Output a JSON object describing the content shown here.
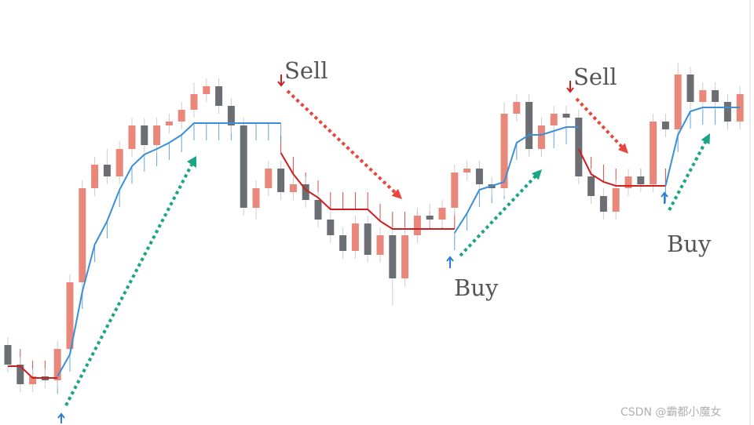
{
  "chart_data": {
    "type": "candlestick",
    "ylim": [
      0,
      542
    ],
    "open": [
      102,
      77,
      52,
      62,
      57,
      97,
      182,
      302,
      332,
      317,
      352,
      382,
      357,
      382,
      387,
      402,
      422,
      432,
      407,
      382,
      277,
      302,
      327,
      297,
      307,
      287,
      262,
      242,
      222,
      257,
      217,
      242,
      187,
      242,
      267,
      262,
      277,
      322,
      327,
      307,
      302,
      397,
      412,
      352,
      382,
      397,
      392,
      317,
      292,
      272,
      302,
      317,
      307,
      387,
      377,
      447,
      412,
      427,
      412,
      387
    ],
    "high": [
      112,
      87,
      72,
      72,
      107,
      192,
      312,
      342,
      352,
      362,
      392,
      392,
      392,
      397,
      412,
      437,
      442,
      442,
      417,
      392,
      312,
      337,
      337,
      317,
      317,
      297,
      272,
      252,
      267,
      267,
      252,
      252,
      252,
      277,
      282,
      287,
      332,
      337,
      337,
      317,
      412,
      422,
      422,
      392,
      407,
      407,
      402,
      327,
      302,
      312,
      327,
      327,
      397,
      397,
      462,
      457,
      437,
      437,
      422,
      432
    ],
    "low": [
      67,
      42,
      42,
      47,
      47,
      87,
      172,
      292,
      307,
      307,
      342,
      347,
      347,
      372,
      377,
      392,
      412,
      397,
      372,
      267,
      262,
      292,
      287,
      287,
      277,
      252,
      232,
      212,
      212,
      207,
      207,
      152,
      177,
      232,
      252,
      252,
      267,
      312,
      297,
      292,
      292,
      387,
      342,
      342,
      372,
      382,
      307,
      282,
      262,
      262,
      292,
      297,
      297,
      367,
      367,
      402,
      402,
      402,
      377,
      377
    ],
    "close": [
      77,
      52,
      62,
      57,
      97,
      182,
      302,
      332,
      317,
      352,
      382,
      357,
      382,
      387,
      402,
      422,
      432,
      407,
      382,
      277,
      302,
      327,
      297,
      307,
      287,
      262,
      242,
      222,
      257,
      217,
      242,
      187,
      242,
      267,
      262,
      277,
      322,
      327,
      307,
      302,
      397,
      412,
      352,
      382,
      397,
      392,
      317,
      292,
      272,
      302,
      317,
      307,
      387,
      377,
      447,
      412,
      427,
      412,
      387,
      422
    ],
    "up_color": "#e8877a",
    "down_color": "#6b6e73",
    "series": [
      {
        "color": "#cc1f1f",
        "values": [
          75,
          75,
          60,
          60,
          60,
          null,
          null,
          null,
          null,
          null,
          null,
          null,
          null,
          null,
          null,
          null,
          null,
          null,
          null,
          null,
          null,
          null,
          347,
          320,
          300,
          290,
          275,
          275,
          275,
          275,
          260,
          250,
          250,
          250,
          250,
          250,
          250,
          null,
          null,
          null,
          null,
          null,
          null,
          null,
          null,
          null,
          352,
          320,
          310,
          305,
          305,
          305,
          305,
          305,
          null,
          null,
          null,
          null,
          null,
          null
        ]
      },
      {
        "color": "#3a8fd6",
        "values": [
          null,
          null,
          null,
          null,
          62,
          90,
          170,
          230,
          260,
          300,
          330,
          345,
          352,
          360,
          370,
          385,
          385,
          385,
          385,
          385,
          385,
          385,
          385,
          null,
          null,
          null,
          null,
          null,
          null,
          null,
          null,
          null,
          null,
          null,
          null,
          null,
          245,
          270,
          300,
          305,
          310,
          360,
          370,
          370,
          375,
          380,
          380,
          null,
          null,
          null,
          null,
          null,
          null,
          305,
          370,
          400,
          405,
          405,
          405,
          405
        ]
      }
    ],
    "annotations": [
      "Sell",
      "Buy",
      "Sell",
      "Buy"
    ],
    "watermark": "CSDN @霸都小魔女"
  }
}
